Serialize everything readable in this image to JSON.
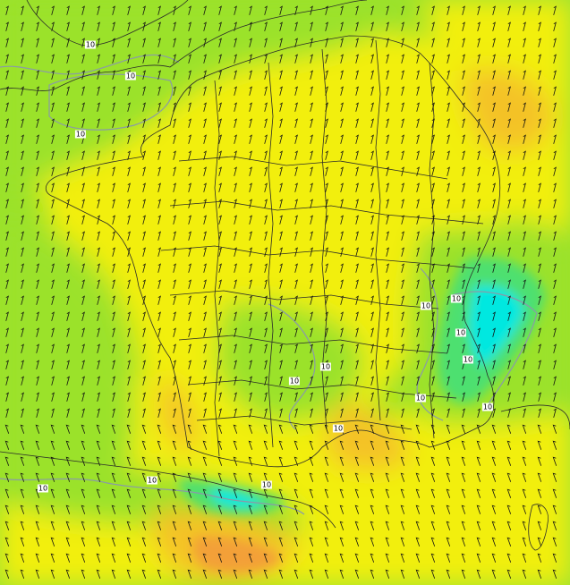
{
  "map": {
    "colors": {
      "calm": "#00e8e0",
      "light": "#4ee070",
      "moderate": "#9be22a",
      "fresh": "#f2ef10",
      "strong": "#f4c228",
      "stronger": "#f3a038",
      "contour": "#8a9aa8",
      "border": "#2a2a2a",
      "barb": "#111111"
    },
    "isoline_value": "10",
    "isoline_labels": [
      "10",
      "10",
      "10",
      "10",
      "10",
      "10",
      "10",
      "10",
      "10",
      "10",
      "10",
      "10",
      "10",
      "10",
      "10",
      "10"
    ]
  }
}
